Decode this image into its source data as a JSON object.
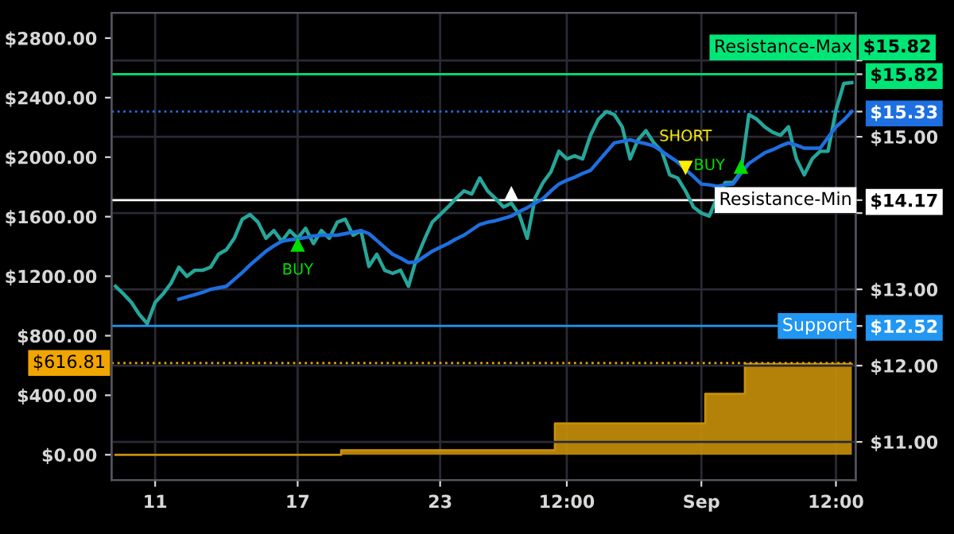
{
  "chart_data": {
    "type": "line",
    "categories": [
      null,
      null,
      null,
      null,
      null,
      "11",
      null,
      null,
      null,
      null,
      null,
      null,
      null,
      null,
      null,
      null,
      null,
      null,
      null,
      null,
      null,
      null,
      null,
      "17",
      null,
      null,
      null,
      null,
      null,
      null,
      null,
      null,
      null,
      null,
      null,
      null,
      null,
      null,
      null,
      null,
      null,
      "23",
      null,
      null,
      null,
      null,
      null,
      null,
      null,
      null,
      null,
      null,
      null,
      null,
      null,
      null,
      null,
      "12:00",
      null,
      null,
      null,
      null,
      null,
      null,
      null,
      null,
      null,
      null,
      null,
      null,
      null,
      null,
      null,
      null,
      "Sep",
      null,
      null,
      null,
      null,
      null,
      null,
      null,
      null,
      null,
      null,
      null,
      null,
      null,
      null,
      null,
      null,
      "12:00",
      null,
      null
    ],
    "ylim": [
      -170,
      2970
    ],
    "yticks": [
      {
        "value": 0,
        "label": "$0.00"
      },
      {
        "value": 400,
        "label": "$400.00"
      },
      {
        "value": 800,
        "label": "$800.00"
      },
      {
        "value": 1200,
        "label": "$1200.00"
      },
      {
        "value": 1600,
        "label": "$1600.00"
      },
      {
        "value": 2000,
        "label": "$2000.00"
      },
      {
        "value": 2400,
        "label": "$2400.00"
      },
      {
        "value": 2800,
        "label": "$2800.00"
      }
    ],
    "y2lim": [
      10.5,
      16.625
    ],
    "y2ticks": [
      {
        "value": 11,
        "label": "$11.00"
      },
      {
        "value": 12,
        "label": "$12.00"
      },
      {
        "value": 13,
        "label": "$13.00"
      },
      {
        "value": 14,
        "label": null
      },
      {
        "value": 15,
        "label": "$15.00"
      },
      {
        "value": 16,
        "label": null
      },
      {
        "value": 12.52,
        "label": "$12.52"
      },
      {
        "value": 14.17,
        "label": "$14.17"
      },
      {
        "value": 15.33,
        "label": "$15.33"
      },
      {
        "value": 15.82,
        "label": "$15.82"
      }
    ],
    "grid": true,
    "series": [
      {
        "type": "area",
        "color": "#c8900a",
        "values": [
          0,
          0,
          0,
          0,
          0,
          0,
          0,
          0,
          0,
          0,
          0,
          0,
          0,
          0,
          0,
          0,
          0,
          0,
          0,
          0,
          0,
          0,
          0,
          0,
          0,
          0,
          0,
          0,
          0,
          30,
          30,
          30,
          30,
          30,
          30,
          30,
          30,
          30,
          30,
          30,
          30,
          30,
          30,
          30,
          30,
          30,
          30,
          30,
          30,
          30,
          30,
          30,
          30,
          30,
          30,
          30,
          210,
          210,
          210,
          210,
          210,
          210,
          210,
          210,
          210,
          210,
          210,
          210,
          210,
          210,
          210,
          210,
          210,
          210,
          210,
          410,
          410,
          410,
          410,
          410,
          610,
          610,
          610,
          610,
          610,
          610,
          610,
          610,
          610,
          610,
          610,
          610,
          610,
          610
        ]
      },
      {
        "axis": "y2",
        "color": "#26a69a",
        "values": [
          13.04,
          12.94,
          12.83,
          12.67,
          12.55,
          12.83,
          12.94,
          13.08,
          13.29,
          13.17,
          13.25,
          13.25,
          13.29,
          13.46,
          13.52,
          13.67,
          13.92,
          13.98,
          13.88,
          13.67,
          13.77,
          13.63,
          13.77,
          13.67,
          13.8,
          13.6,
          13.77,
          13.67,
          13.88,
          13.92,
          13.71,
          13.77,
          13.3,
          13.46,
          13.25,
          13.21,
          13.25,
          13.04,
          13.4,
          13.65,
          13.88,
          13.98,
          14.08,
          14.19,
          14.29,
          14.25,
          14.46,
          14.29,
          14.19,
          14.08,
          14.13,
          13.98,
          13.67,
          14.2,
          14.4,
          14.54,
          14.81,
          14.71,
          14.75,
          14.71,
          15.02,
          15.23,
          15.33,
          15.29,
          15.13,
          14.71,
          14.96,
          15.08,
          14.92,
          14.81,
          14.5,
          14.46,
          14.29,
          14.08,
          14.0,
          13.96,
          14.21,
          14.4,
          14.4,
          14.54,
          15.29,
          15.23,
          15.13,
          15.06,
          15.02,
          15.13,
          14.71,
          14.5,
          14.71,
          14.81,
          14.81,
          15.35,
          15.7,
          15.71
        ]
      },
      {
        "axis": "y2",
        "color": "#1e6fe0",
        "values": [
          null,
          null,
          null,
          null,
          null,
          null,
          null,
          null,
          12.87,
          12.9,
          12.93,
          12.96,
          13.0,
          13.02,
          13.04,
          13.13,
          13.22,
          13.32,
          13.41,
          13.5,
          13.57,
          13.63,
          13.65,
          13.66,
          13.68,
          13.7,
          13.71,
          13.71,
          13.71,
          13.73,
          13.75,
          13.77,
          13.73,
          13.64,
          13.55,
          13.46,
          13.41,
          13.35,
          13.36,
          13.43,
          13.5,
          13.55,
          13.6,
          13.66,
          13.71,
          13.78,
          13.85,
          13.88,
          13.9,
          13.93,
          13.96,
          14.02,
          14.07,
          14.13,
          14.19,
          14.29,
          14.38,
          14.43,
          14.47,
          14.52,
          14.56,
          14.68,
          14.8,
          14.92,
          14.94,
          14.96,
          14.93,
          14.91,
          14.88,
          14.81,
          14.74,
          14.67,
          14.57,
          14.48,
          14.38,
          14.37,
          14.35,
          14.37,
          14.38,
          14.52,
          14.65,
          14.72,
          14.79,
          14.83,
          14.88,
          14.92,
          14.89,
          14.85,
          14.85,
          14.85,
          14.99,
          15.13,
          15.22,
          15.33
        ]
      }
    ],
    "ref_lines": [
      {
        "axis": "y2",
        "value": 15.82,
        "label": "Resistance-Max",
        "color": "#00e676",
        "line_style": "solid"
      },
      {
        "axis": "y2",
        "value": 15.33,
        "color": "#1e6fe0",
        "line_style": "dotted"
      },
      {
        "axis": "y2",
        "value": 14.17,
        "label": "Resistance-Min",
        "color": "#ffffff",
        "line_style": "solid"
      },
      {
        "axis": "y2",
        "value": 12.52,
        "label": "Support",
        "color": "#2196f3",
        "line_style": "solid"
      },
      {
        "axis": "y",
        "value": 616.81,
        "label": "$616.81",
        "color": "#f0a500",
        "line_style": "dotted"
      }
    ],
    "annotations": [
      "BUY",
      "SHORT",
      "BUY",
      "$15.82"
    ]
  }
}
